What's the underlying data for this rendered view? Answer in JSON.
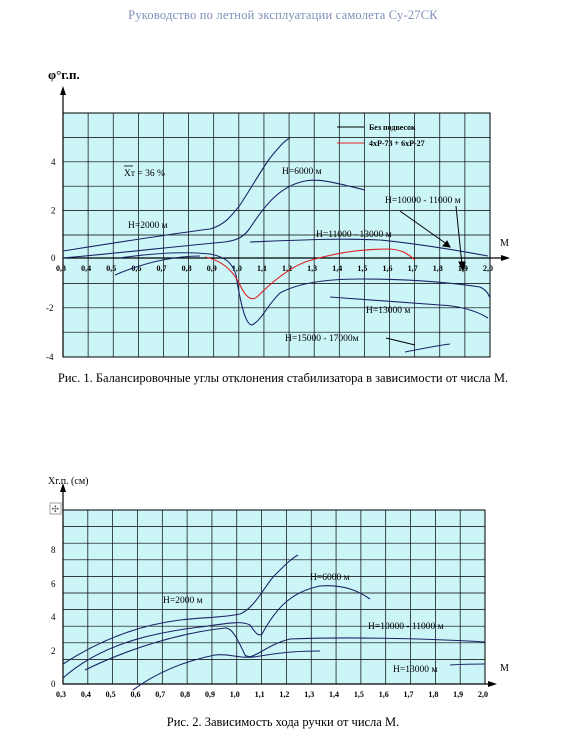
{
  "header": {
    "title": "Руководство по летной эксплуатации самолета Су-27СК"
  },
  "figure1": {
    "caption": "Рис. 1. Балансировочные углы отклонения стабилизатора в зависимости от числа М.",
    "y_label": "φ°г.п.",
    "x_label": "М",
    "x_ticks": [
      "0,3",
      "0,4",
      "0,5",
      "0,6",
      "0,7",
      "0,8",
      "0,9",
      "1,0",
      "1,1",
      "1,2",
      "1,3",
      "1,4",
      "1,5",
      "1,6",
      "1,7",
      "1,8",
      "1,9",
      "2,0"
    ],
    "y_ticks": [
      "4",
      "2",
      "0",
      "-2",
      "-4"
    ],
    "legend": [
      "Без подвесок",
      "4хР-73 + 6хР-27"
    ],
    "annotations": {
      "xt": "Xт = 36 %",
      "h2000": "Н=2000 м",
      "h6000": "Н=6000 м",
      "h10000": "Н=10000 - 11000 м",
      "h11000": "Н=11000 - 13000 м",
      "h13000": "Н=13000 м",
      "h15000": "Н=15000 - 17000м"
    },
    "colors": {
      "fill": "#ccf5f8",
      "grid": "#000000",
      "accent": "#dd2222",
      "text": "#1a2466"
    }
  },
  "figure2": {
    "caption": "Рис. 2. Зависимость хода ручки от числа М.",
    "y_label": "Хг.п.  (см)",
    "x_label": "М",
    "x_ticks": [
      "0,3",
      "0,4",
      "0,5",
      "0,6",
      "0,7",
      "0,8",
      "0,9",
      "1,0",
      "1,1",
      "1,2",
      "1,3",
      "1,4",
      "1,5",
      "1,6",
      "1,7",
      "1,8",
      "1,9",
      "2,0"
    ],
    "y_ticks": [
      "8",
      "6",
      "4",
      "2",
      "0"
    ],
    "annotations": {
      "h2000": "Н=2000 м",
      "h6000": "Н=6000 м",
      "h10000": "Н=10000 - 11000 м",
      "h13000": "Н=13000 м"
    },
    "colors": {
      "fill": "#ccf5f8",
      "grid": "#000000"
    }
  }
}
